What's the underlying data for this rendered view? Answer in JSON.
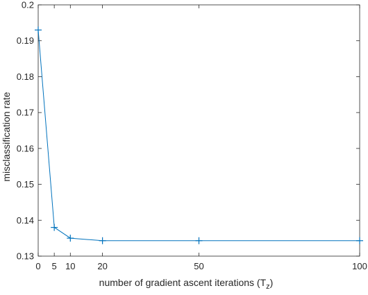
{
  "chart_data": {
    "type": "line",
    "title": "",
    "xlabel": "number of gradient ascent iterations (T",
    "xlabel_subscript": "z",
    "xlabel_close": ")",
    "ylabel": "misclassification rate",
    "xlim": [
      0,
      100
    ],
    "ylim": [
      0.13,
      0.2
    ],
    "xticks": [
      0,
      5,
      10,
      20,
      50,
      100
    ],
    "yticks": [
      0.13,
      0.14,
      0.15,
      0.16,
      0.17,
      0.18,
      0.19,
      0.2
    ],
    "grid": false,
    "marker": "+",
    "line_color": "#0072BD",
    "series": [
      {
        "x": [
          0,
          5,
          10,
          20,
          50,
          100
        ],
        "values": [
          0.193,
          0.138,
          0.135,
          0.1343,
          0.1343,
          0.1343
        ]
      }
    ]
  }
}
